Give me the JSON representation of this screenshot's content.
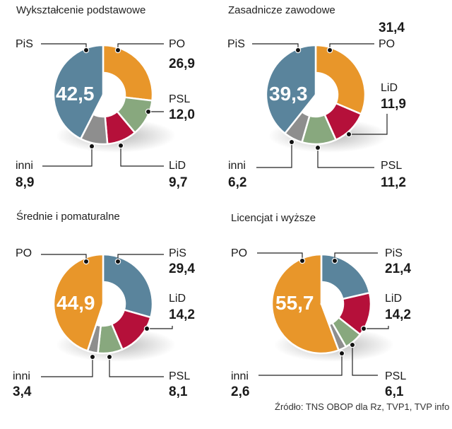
{
  "colors": {
    "PO": "#E8962A",
    "PiS": "#5A849C",
    "PSL": "#88A87E",
    "LiD": "#B5103A",
    "inni": "#8E8E8E"
  },
  "source": "Źródło: TNS OBOP dla Rz, TVP1, TVP info",
  "chart_data": [
    {
      "type": "pie",
      "title": "Wykształcenie podstawowe",
      "big_label": "42,5",
      "slices": [
        {
          "name": "PO",
          "value": 26.9,
          "label": "26,9"
        },
        {
          "name": "PSL",
          "value": 12.0,
          "label": "12,0"
        },
        {
          "name": "LiD",
          "value": 9.7,
          "label": "9,7"
        },
        {
          "name": "inni",
          "value": 8.9,
          "label": "8,9"
        },
        {
          "name": "PiS",
          "value": 42.5,
          "label": "42,5"
        }
      ]
    },
    {
      "type": "pie",
      "title": "Zasadnicze zawodowe",
      "big_label": "39,3",
      "slices": [
        {
          "name": "PO",
          "value": 31.4,
          "label": "31,4"
        },
        {
          "name": "LiD",
          "value": 11.9,
          "label": "11,9"
        },
        {
          "name": "PSL",
          "value": 11.2,
          "label": "11,2"
        },
        {
          "name": "inni",
          "value": 6.2,
          "label": "6,2"
        },
        {
          "name": "PiS",
          "value": 39.3,
          "label": "39,3"
        }
      ]
    },
    {
      "type": "pie",
      "title": "Średnie i pomaturalne",
      "big_label": "44,9",
      "slices": [
        {
          "name": "PiS",
          "value": 29.4,
          "label": "29,4"
        },
        {
          "name": "LiD",
          "value": 14.2,
          "label": "14,2"
        },
        {
          "name": "PSL",
          "value": 8.1,
          "label": "8,1"
        },
        {
          "name": "inni",
          "value": 3.4,
          "label": "3,4"
        },
        {
          "name": "PO",
          "value": 44.9,
          "label": "44,9"
        }
      ]
    },
    {
      "type": "pie",
      "title": "Licencjat i wyższe",
      "big_label": "55,7",
      "slices": [
        {
          "name": "PiS",
          "value": 21.4,
          "label": "21,4"
        },
        {
          "name": "LiD",
          "value": 14.2,
          "label": "14,2"
        },
        {
          "name": "PSL",
          "value": 6.1,
          "label": "6,1"
        },
        {
          "name": "inni",
          "value": 2.6,
          "label": "2,6"
        },
        {
          "name": "PO",
          "value": 55.7,
          "label": "55,7"
        }
      ]
    }
  ]
}
